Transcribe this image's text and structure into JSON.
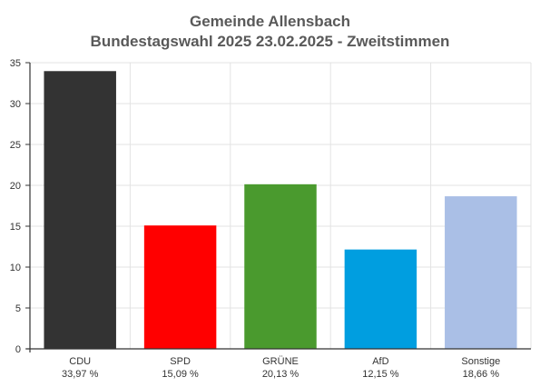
{
  "chart_data": {
    "type": "bar",
    "title": "Gemeinde Allensbach",
    "subtitle": "Bundestagswahl 2025 23.02.2025  - Zweitstimmen",
    "categories": [
      "CDU",
      "SPD",
      "GRÜNE",
      "AfD",
      "Sonstige"
    ],
    "values": [
      33.97,
      15.09,
      20.13,
      12.15,
      18.66
    ],
    "value_labels": [
      "33,97 %",
      "15,09 %",
      "20,13 %",
      "12,15 %",
      "18,66 %"
    ],
    "colors": [
      "#333333",
      "#ff0000",
      "#4a9a2e",
      "#009ee0",
      "#aabfe6"
    ],
    "ylim": [
      0,
      35
    ],
    "yticks": [
      0,
      5,
      10,
      15,
      20,
      25,
      30,
      35
    ],
    "grid": true,
    "xlabel": "",
    "ylabel": ""
  }
}
